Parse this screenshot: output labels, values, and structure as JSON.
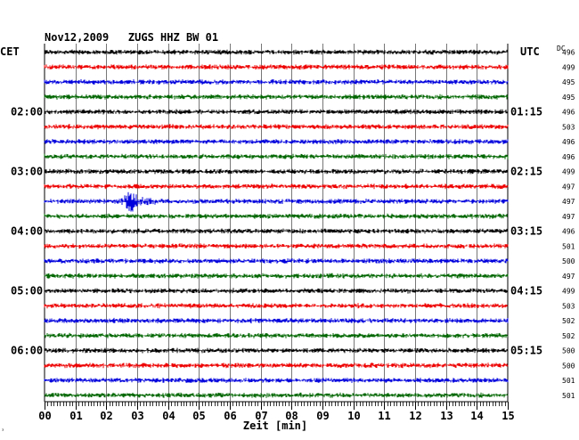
{
  "chart_data": {
    "type": "line",
    "title": "Nov12,2009   ZUGS HHZ BW 01",
    "left_timezone": "CET",
    "right_timezone": "UTC",
    "dc_header": "DC",
    "xlabel": "Zeit [min]",
    "xlim": [
      0,
      15
    ],
    "x_ticks": [
      "00",
      "01",
      "02",
      "03",
      "04",
      "05",
      "06",
      "07",
      "08",
      "09",
      "10",
      "11",
      "12",
      "13",
      "14",
      "15"
    ],
    "trace_colors": [
      "#000000",
      "#ee0000",
      "#0000dd",
      "#006600"
    ],
    "hour_labels": [
      {
        "row": 4,
        "left": "02:00",
        "right": "01:15"
      },
      {
        "row": 8,
        "left": "03:00",
        "right": "02:15"
      },
      {
        "row": 12,
        "left": "04:00",
        "right": "03:15"
      },
      {
        "row": 16,
        "left": "05:00",
        "right": "04:15"
      },
      {
        "row": 20,
        "left": "06:00",
        "right": "05:15"
      }
    ],
    "dc_values": [
      "496",
      "499",
      "495",
      "495",
      "496",
      "503",
      "496",
      "496",
      "499",
      "497",
      "497",
      "497",
      "496",
      "501",
      "500",
      "497",
      "499",
      "503",
      "502",
      "502",
      "500",
      "500",
      "501",
      "501"
    ],
    "event": {
      "row": 10,
      "start_min": 2.4,
      "end_min": 3.6,
      "peak_min": 2.8,
      "amplitude": 12
    },
    "noise_amplitude": 2.6
  }
}
